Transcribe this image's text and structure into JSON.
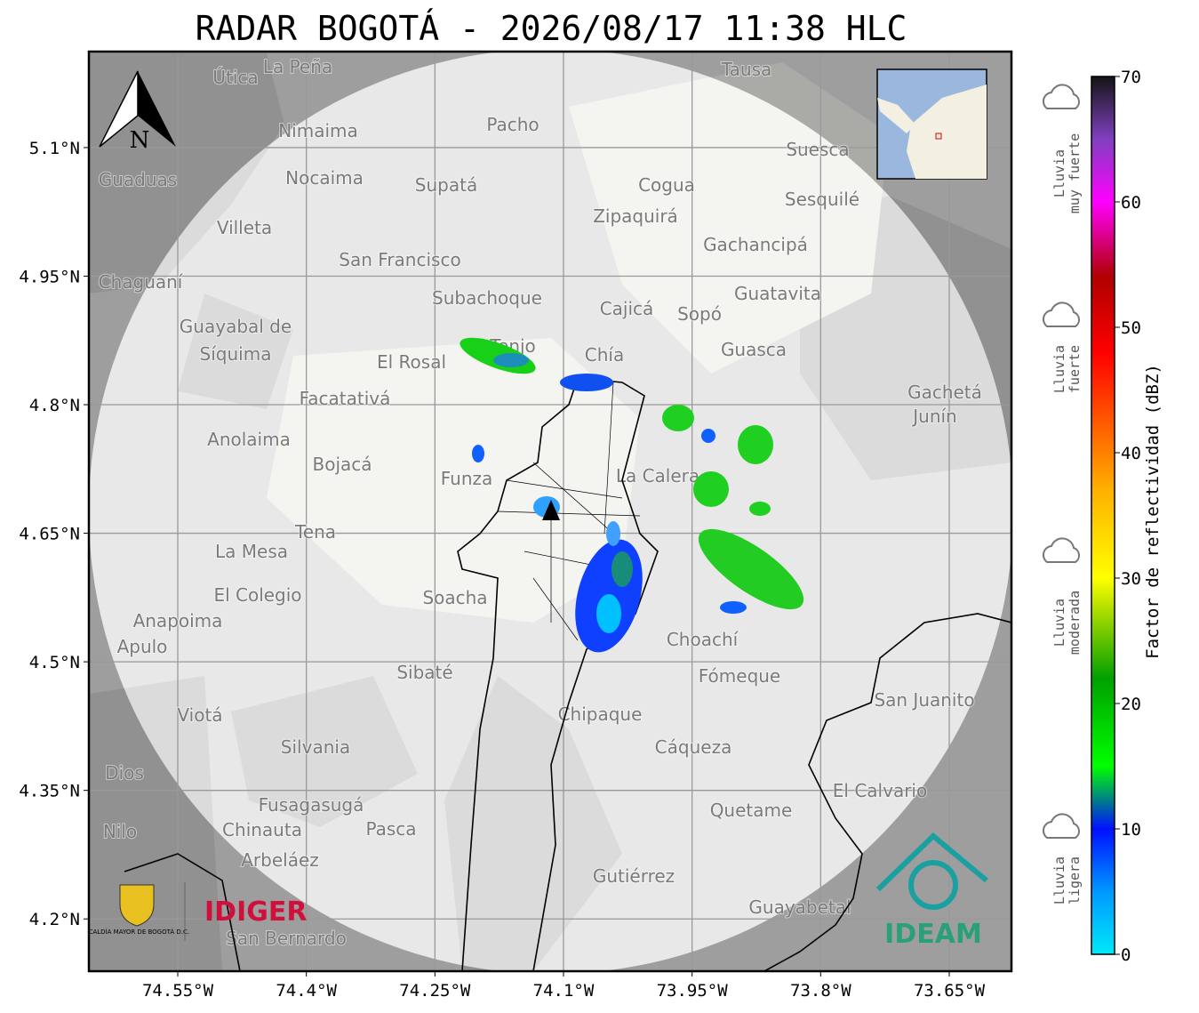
{
  "title": "RADAR BOGOTÁ - 2026/08/17 11:38 HLC",
  "map": {
    "latlim": [
      4.139,
      5.212
    ],
    "lonlim": [
      -74.6537,
      -73.5774
    ],
    "lat_ticks": [
      {
        "value": 5.1,
        "label": "5.1°N"
      },
      {
        "value": 4.95,
        "label": "4.95°N"
      },
      {
        "value": 4.8,
        "label": "4.8°N"
      },
      {
        "value": 4.65,
        "label": "4.65°N"
      },
      {
        "value": 4.5,
        "label": "4.5°N"
      },
      {
        "value": 4.35,
        "label": "4.35°N"
      },
      {
        "value": 4.2,
        "label": "4.2°N"
      }
    ],
    "lon_ticks": [
      {
        "value": -74.55,
        "label": "74.55°W"
      },
      {
        "value": -74.4,
        "label": "74.4°W"
      },
      {
        "value": -74.25,
        "label": "74.25°W"
      },
      {
        "value": -74.1,
        "label": "74.1°W"
      },
      {
        "value": -73.95,
        "label": "73.95°W"
      },
      {
        "value": -73.8,
        "label": "73.8°W"
      },
      {
        "value": -73.65,
        "label": "73.65°W"
      }
    ],
    "grid": true,
    "north": "N",
    "places": [
      "La Peña",
      "Útica",
      "Tausa",
      "Pacho",
      "Nimaima",
      "Suesca",
      "Guaduas",
      "Nocaima",
      "Supatá",
      "Cogua",
      "Sesquilé",
      "Zipaquirá",
      "Villeta",
      "Gachancipá",
      "San Francisco",
      "Chaguaní",
      "Guatavita",
      "Subachoque",
      "Cajicá",
      "Sopó",
      "Guayabal de",
      "Síquima",
      "Tenjo",
      "Chía",
      "Guasca",
      "El Rosal",
      "Facatativá",
      "Gachetá",
      "Junín",
      "Anolaima",
      "Bojacá",
      "Funza",
      "La Calera",
      "Tena",
      "La Mesa",
      "El Colegio",
      "Soacha",
      "Anapoima",
      "Apulo",
      "Choachí",
      "Sibaté",
      "Fómeque",
      "San Juanito",
      "Viotá",
      "Chipaque",
      "Silvania",
      "Cáqueza",
      "El Calvario",
      "Fusagasugá",
      "Quetame",
      "Pasca",
      "Chinauta",
      "Nilo",
      "Arbeláez",
      "Gutiérrez",
      "Guayabetal",
      "San Bernardo",
      "Dios"
    ]
  },
  "colorbar": {
    "label": "Factor de reflectividad (dBZ)",
    "lim": [
      0,
      70
    ],
    "ticks": [
      0,
      10,
      20,
      30,
      40,
      50,
      60,
      70
    ],
    "stops": [
      {
        "value": 0,
        "color": "#00e8f8"
      },
      {
        "value": 5,
        "color": "#0098ff"
      },
      {
        "value": 10,
        "color": "#0010ff"
      },
      {
        "value": 15,
        "color": "#00ff00"
      },
      {
        "value": 22,
        "color": "#00a000"
      },
      {
        "value": 27,
        "color": "#a0d800"
      },
      {
        "value": 30,
        "color": "#ffff00"
      },
      {
        "value": 37,
        "color": "#ffb000"
      },
      {
        "value": 43,
        "color": "#ff5000"
      },
      {
        "value": 48,
        "color": "#ff0000"
      },
      {
        "value": 54,
        "color": "#b00000"
      },
      {
        "value": 60,
        "color": "#ff00ff"
      },
      {
        "value": 65,
        "color": "#8040c0"
      },
      {
        "value": 70,
        "color": "#141414"
      }
    ]
  },
  "rain_levels": [
    [
      "Lluvia",
      "muy fuerte"
    ],
    [
      "Lluvia",
      "fuerte"
    ],
    [
      "Lluvia",
      "moderada"
    ],
    [
      "Lluvia",
      "ligera"
    ]
  ],
  "logos": {
    "alcaldia": "ALCALDÍA MAYOR DE BOGOTÁ D.C.",
    "idiger": "IDIGER",
    "ideam": "IDEAM"
  }
}
